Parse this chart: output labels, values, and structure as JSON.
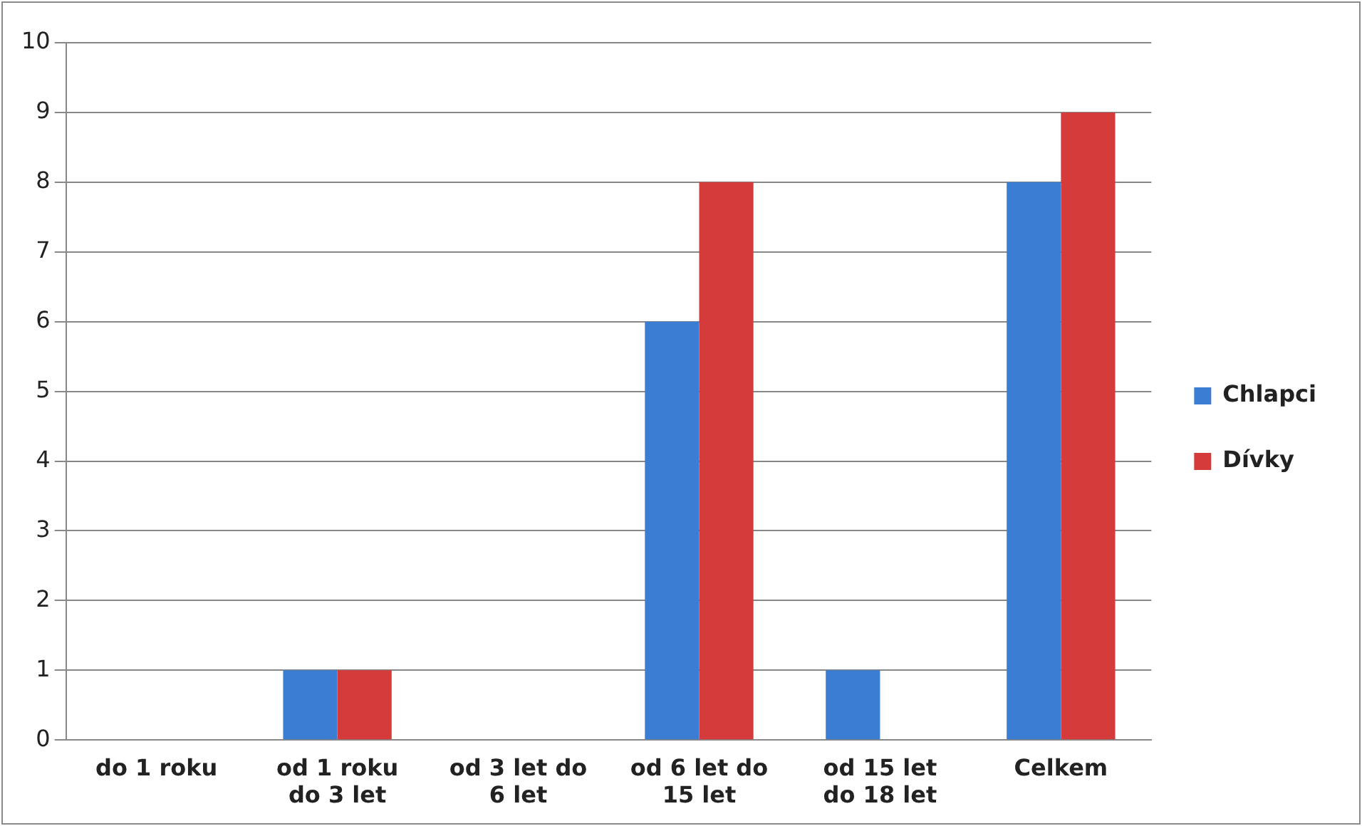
{
  "chart_data": {
    "type": "bar",
    "categories": [
      "do 1 roku",
      "od 1 roku do 3 let",
      "od 3 let do 6 let",
      "od 6 let do 15 let",
      "od 15 let do 18 let",
      "Celkem"
    ],
    "series": [
      {
        "name": "Chlapci",
        "color": "#3b7dd2",
        "values": [
          0,
          1,
          0,
          6,
          1,
          8
        ]
      },
      {
        "name": "Dívky",
        "color": "#d63b3b",
        "values": [
          0,
          1,
          0,
          8,
          0,
          9
        ]
      }
    ],
    "ylim": [
      0,
      10
    ],
    "yticks": [
      0,
      1,
      2,
      3,
      4,
      5,
      6,
      7,
      8,
      9,
      10
    ],
    "grid": "y",
    "legend": "right"
  }
}
